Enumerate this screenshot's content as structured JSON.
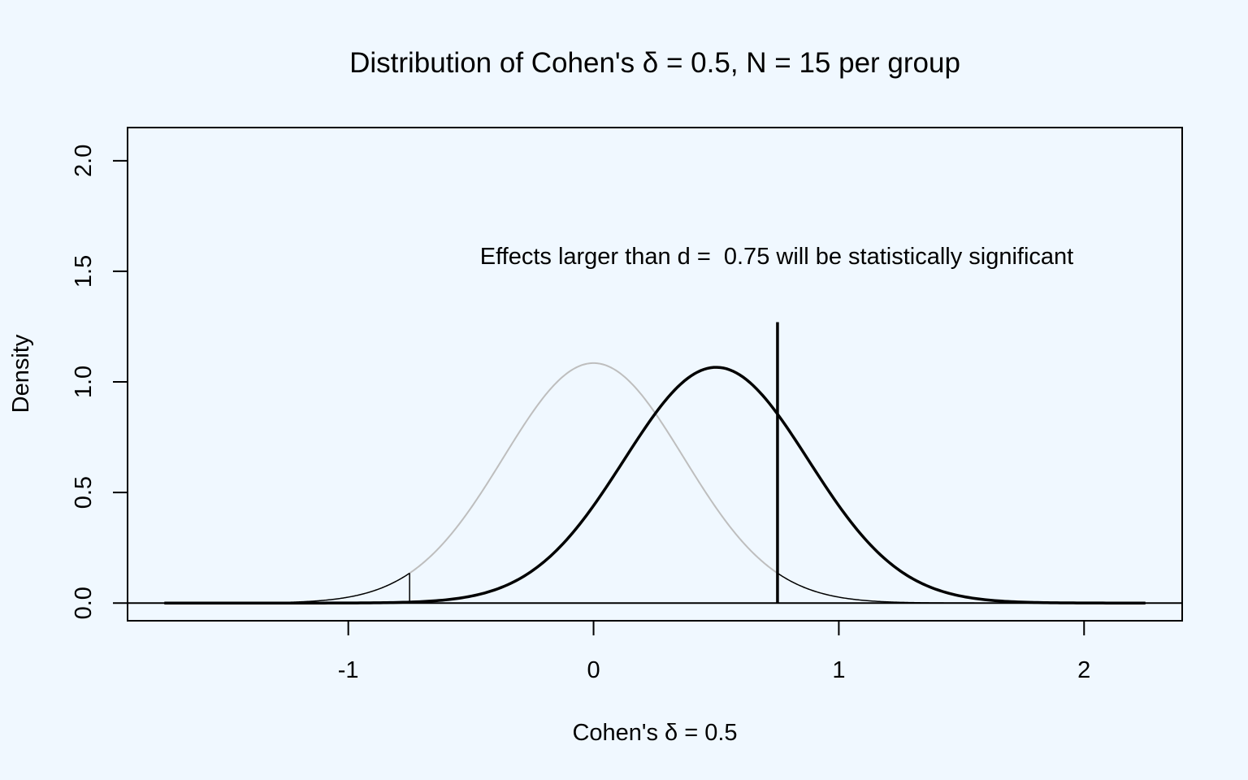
{
  "chart_data": {
    "type": "line",
    "title": "Distribution of Cohen's δ = 0.5, N = 15 per group",
    "xlabel": "Cohen's δ = 0.5",
    "ylabel": "Density",
    "xlim": [
      -1.9,
      2.4
    ],
    "ylim": [
      -0.08,
      2.15
    ],
    "x_ticks": [
      -1,
      0,
      1,
      2
    ],
    "x_tick_labels": [
      "-1",
      "0",
      "1",
      "2"
    ],
    "y_ticks": [
      0,
      0.5,
      1,
      1.5,
      2
    ],
    "y_tick_labels": [
      "0.0",
      "0.5",
      "1.0",
      "1.5",
      "2.0"
    ],
    "annotation": "Effects larger than d =  0.75 will be statistically significant",
    "critical_value": 0.75,
    "critical_line_top": 1.27,
    "series": [
      {
        "mean": 0.0,
        "sd": 0.3675,
        "peak": 1.085,
        "x_range": [
          -1.75,
          2.25
        ],
        "color": "#bebebe",
        "critical_color": "#000000",
        "line_width": 2
      },
      {
        "mean": 0.5,
        "sd": 0.376,
        "peak": 1.066,
        "x_range": [
          -1.75,
          2.25
        ],
        "color": "#000000",
        "line_width": 3.5
      }
    ]
  }
}
